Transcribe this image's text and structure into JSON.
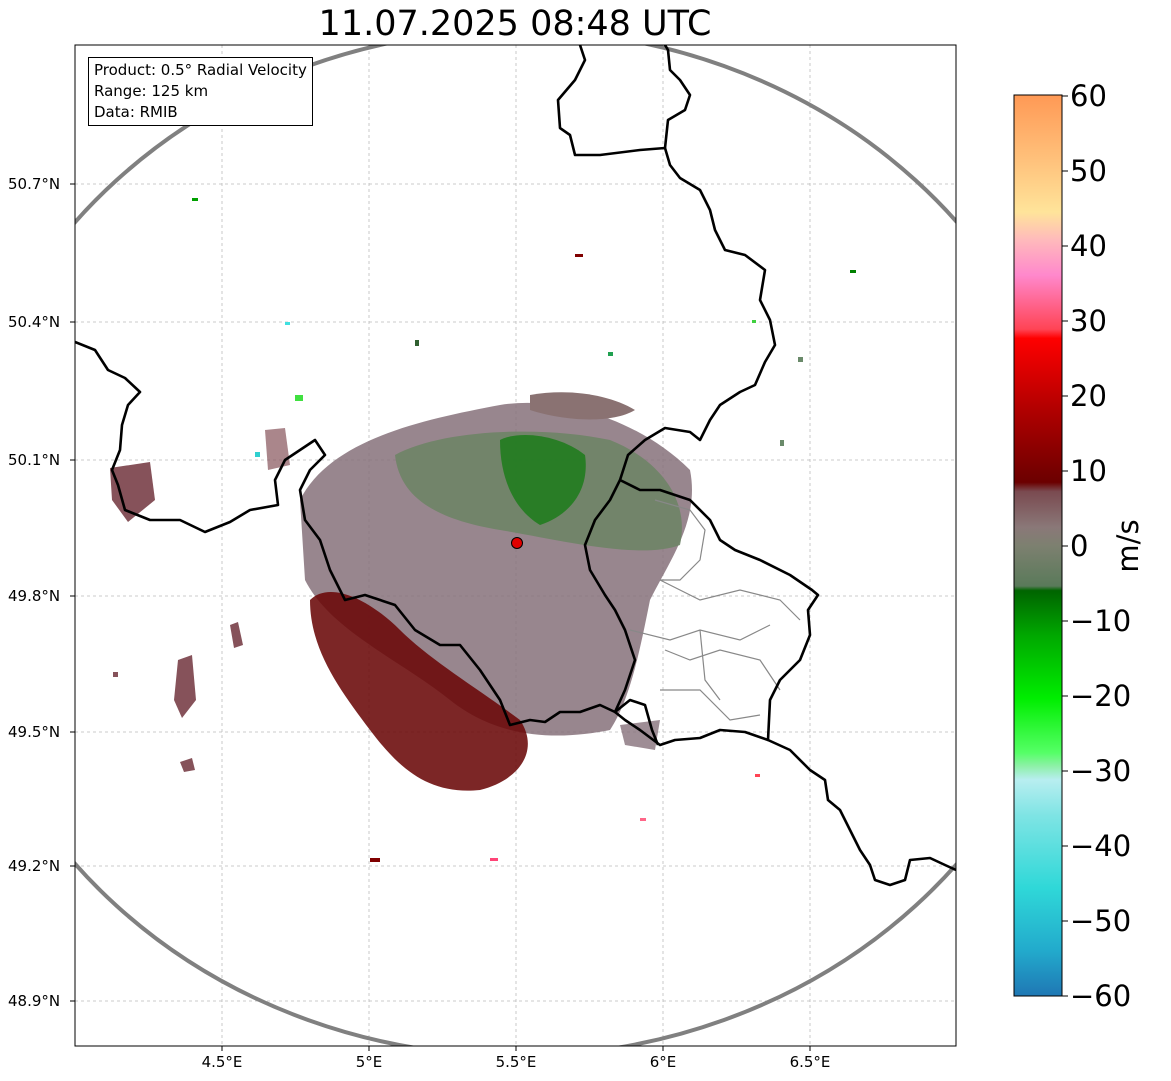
{
  "title": "11.07.2025 08:48 UTC",
  "info": {
    "product": "Product: 0.5° Radial Velocity",
    "range": "Range: 125 km",
    "source": "Data: RMIB"
  },
  "axes": {
    "lat_ticks": [
      "50.7°N",
      "50.4°N",
      "50.1°N",
      "49.8°N",
      "49.5°N",
      "49.2°N",
      "48.9°N"
    ],
    "lon_ticks": [
      "4.5°E",
      "5°E",
      "5.5°E",
      "6°E",
      "6.5°E"
    ]
  },
  "colorbar": {
    "unit": "m/s",
    "ticks": [
      "60",
      "50",
      "40",
      "30",
      "20",
      "10",
      "0",
      "−10",
      "−20",
      "−30",
      "−40",
      "−50",
      "−60"
    ],
    "range": [
      -60,
      60
    ]
  },
  "map": {
    "radar_site_color": "#e00000",
    "range_ring_color": "#808080",
    "border_color": "#000000",
    "grid_style": "dashed light gray"
  }
}
